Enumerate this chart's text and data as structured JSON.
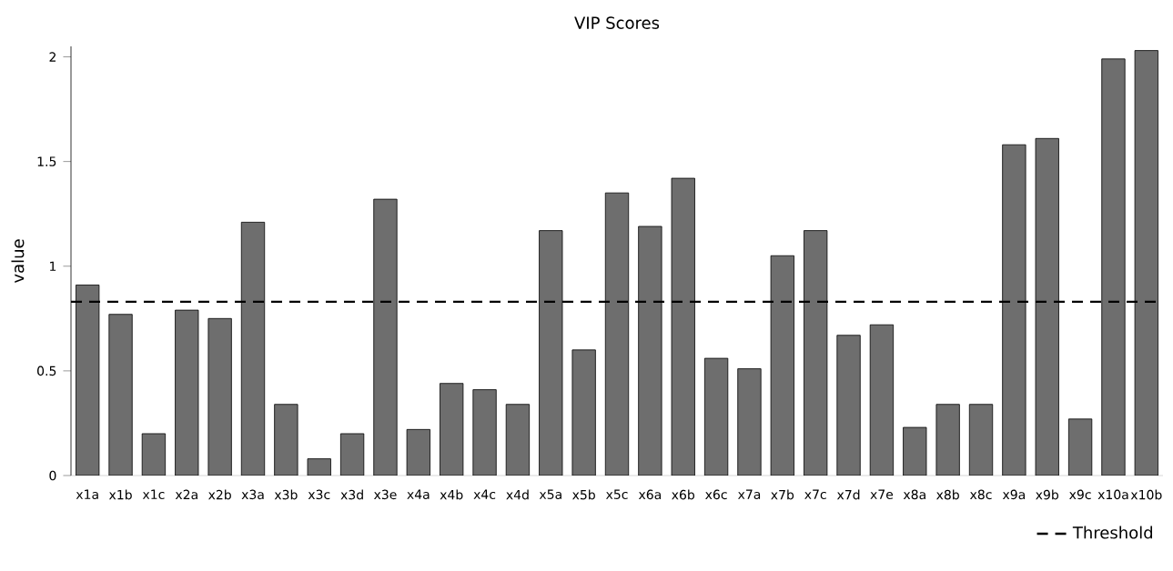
{
  "chart_data": {
    "type": "bar",
    "title": "VIP Scores",
    "ylabel": "value",
    "categories": [
      "x1a",
      "x1b",
      "x1c",
      "x2a",
      "x2b",
      "x3a",
      "x3b",
      "x3c",
      "x3d",
      "x3e",
      "x4a",
      "x4b",
      "x4c",
      "x4d",
      "x5a",
      "x5b",
      "x5c",
      "x6a",
      "x6b",
      "x6c",
      "x7a",
      "x7b",
      "x7c",
      "x7d",
      "x7e",
      "x8a",
      "x8b",
      "x8c",
      "x9a",
      "x9b",
      "x9c",
      "x10a",
      "x10b"
    ],
    "values": [
      0.91,
      0.77,
      0.2,
      0.79,
      0.75,
      1.21,
      0.34,
      0.08,
      0.2,
      1.32,
      0.22,
      0.44,
      0.41,
      0.34,
      1.17,
      0.6,
      1.35,
      1.19,
      1.42,
      0.56,
      0.51,
      1.05,
      1.17,
      0.67,
      0.72,
      0.23,
      0.34,
      0.34,
      1.58,
      1.61,
      0.27,
      1.99,
      2.03
    ],
    "color": "#6e6e6e",
    "ylim": [
      0,
      2.05
    ],
    "yticks": [
      0,
      0.5,
      1,
      1.5,
      2
    ],
    "ref_lines": [
      {
        "axis": "y",
        "value": 0.83,
        "label": "Threshold",
        "color": "#000000",
        "line_style": "dashed"
      }
    ],
    "legend": "bottom right"
  }
}
